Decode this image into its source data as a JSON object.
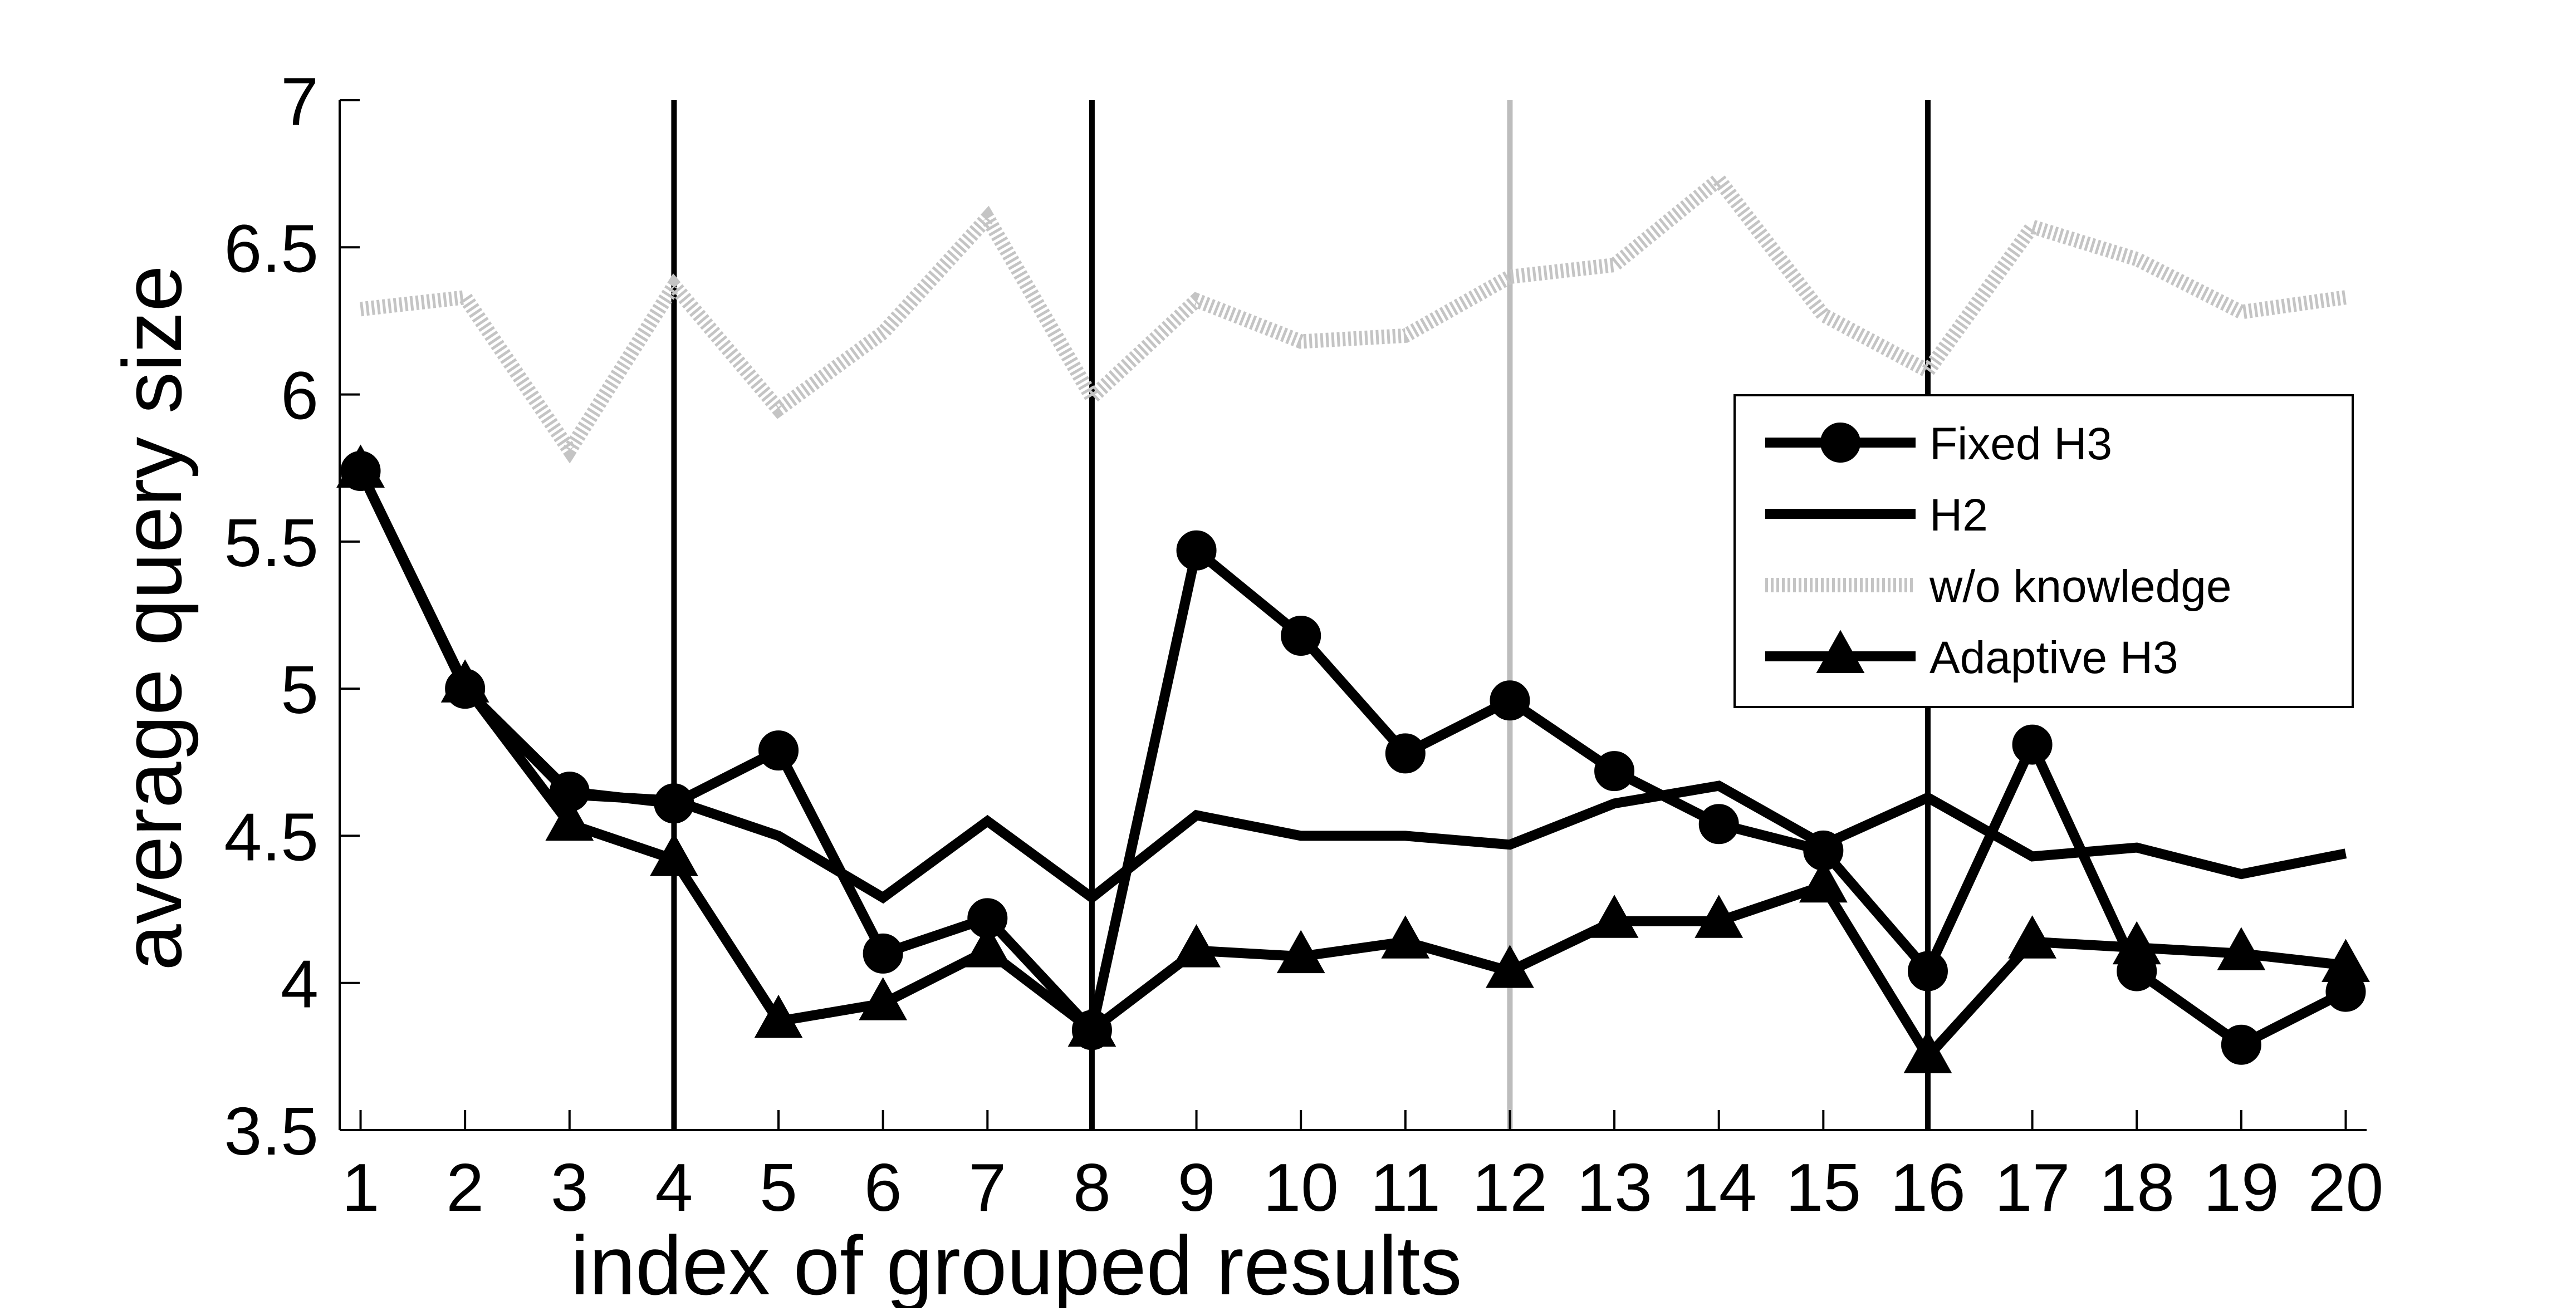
{
  "chart_data": {
    "type": "line",
    "title": "",
    "xlabel": "index of grouped results",
    "ylabel": "average query size",
    "x": [
      1,
      2,
      3,
      4,
      5,
      6,
      7,
      8,
      9,
      10,
      11,
      12,
      13,
      14,
      15,
      16,
      17,
      18,
      19,
      20
    ],
    "xlim": [
      0.8,
      20.2
    ],
    "ylim": [
      3.5,
      7
    ],
    "yticks": [
      "3.5",
      "4",
      "4.5",
      "5",
      "5.5",
      "6",
      "6.5",
      "7"
    ],
    "xticks": [
      "1",
      "2",
      "3",
      "4",
      "5",
      "6",
      "7",
      "8",
      "9",
      "10",
      "11",
      "12",
      "13",
      "14",
      "15",
      "16",
      "17",
      "18",
      "19",
      "20"
    ],
    "grid": false,
    "legend_position": "right",
    "vertical_lines": [
      {
        "x": 4,
        "color": "#000000"
      },
      {
        "x": 8,
        "color": "#000000"
      },
      {
        "x": 12,
        "color": "#bdbdbd"
      },
      {
        "x": 16,
        "color": "#000000"
      }
    ],
    "series": [
      {
        "name": "Fixed H3",
        "color": "#000000",
        "marker": "circle",
        "style": "solid",
        "values": [
          5.74,
          5.0,
          4.65,
          4.61,
          4.79,
          4.1,
          4.22,
          3.84,
          5.47,
          5.18,
          4.78,
          4.96,
          4.72,
          4.54,
          4.45,
          4.04,
          4.81,
          4.04,
          3.79,
          3.97
        ]
      },
      {
        "name": "H2",
        "color": "#000000",
        "marker": "none",
        "style": "solid",
        "values": [
          5.74,
          5.0,
          4.64,
          4.62,
          4.5,
          4.29,
          4.55,
          4.29,
          4.57,
          4.5,
          4.5,
          4.47,
          4.61,
          4.67,
          4.47,
          4.63,
          4.43,
          4.46,
          4.37,
          4.44
        ]
      },
      {
        "name": "w/o knowledge",
        "color": "#c4c4c4",
        "marker": "none",
        "style": "dotted",
        "values": [
          6.29,
          6.33,
          5.81,
          6.37,
          5.95,
          6.21,
          6.6,
          5.99,
          6.32,
          6.18,
          6.2,
          6.4,
          6.44,
          6.73,
          6.27,
          6.08,
          6.57,
          6.46,
          6.28,
          6.33
        ]
      },
      {
        "name": "Adaptive H3",
        "color": "#000000",
        "marker": "triangle",
        "style": "solid",
        "values": [
          5.74,
          5.01,
          4.54,
          4.42,
          3.87,
          3.93,
          4.11,
          3.84,
          4.11,
          4.09,
          4.14,
          4.04,
          4.21,
          4.21,
          4.33,
          3.75,
          4.14,
          4.12,
          4.1,
          4.06
        ]
      }
    ]
  }
}
